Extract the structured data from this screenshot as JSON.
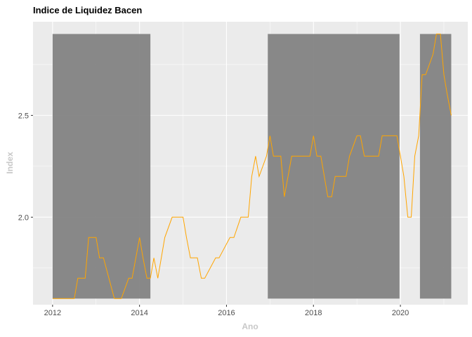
{
  "chart_data": {
    "type": "line",
    "title": "Indice de Liquidez Bacen",
    "xlabel": "Ano",
    "ylabel": "Index",
    "xlim": [
      2011.55,
      2021.55
    ],
    "ylim": [
      1.57,
      2.96
    ],
    "x_ticks": [
      2012,
      2014,
      2016,
      2018,
      2020
    ],
    "x_tick_labels": [
      "2012",
      "2014",
      "2016",
      "2018",
      "2020"
    ],
    "y_ticks": [
      2.0,
      2.5
    ],
    "y_tick_labels": [
      "2.0",
      "2.5"
    ],
    "grid": true,
    "colors": {
      "line": "#FFA500",
      "band": "#7f7f7f",
      "panel": "#ebebeb",
      "grid": "#ffffff"
    },
    "shaded_periods": [
      {
        "start": 2012.0,
        "end": 2014.25,
        "ymin": 1.6,
        "ymax": 2.9
      },
      {
        "start": 2016.95,
        "end": 2019.98,
        "ymin": 1.6,
        "ymax": 2.9
      },
      {
        "start": 2020.45,
        "end": 2021.17,
        "ymin": 1.6,
        "ymax": 2.9
      }
    ],
    "series": [
      {
        "x": [
          2012.0,
          2012.42,
          2012.5,
          2012.58,
          2012.75,
          2012.83,
          2013.0,
          2013.08,
          2013.17,
          2013.42,
          2013.5,
          2013.58,
          2013.75,
          2013.83,
          2014.0,
          2014.08,
          2014.17,
          2014.25,
          2014.33,
          2014.42,
          2014.58,
          2014.75,
          2015.0,
          2015.08,
          2015.17,
          2015.33,
          2015.42,
          2015.5,
          2015.75,
          2015.83,
          2016.08,
          2016.17,
          2016.33,
          2016.5,
          2016.58,
          2016.67,
          2016.75,
          2016.92,
          2017.0,
          2017.08,
          2017.25,
          2017.33,
          2017.5,
          2017.75,
          2017.83,
          2017.92,
          2018.0,
          2018.08,
          2018.17,
          2018.33,
          2018.42,
          2018.5,
          2018.75,
          2018.83,
          2019.0,
          2019.08,
          2019.17,
          2019.5,
          2019.58,
          2019.92,
          2020.0,
          2020.08,
          2020.17,
          2020.25,
          2020.33,
          2020.42,
          2020.5,
          2020.58,
          2020.75,
          2020.83,
          2020.92,
          2021.0,
          2021.08,
          2021.17
        ],
        "values": [
          1.6,
          1.6,
          1.6,
          1.7,
          1.7,
          1.9,
          1.9,
          1.8,
          1.8,
          1.6,
          1.6,
          1.6,
          1.7,
          1.7,
          1.9,
          1.8,
          1.7,
          1.7,
          1.8,
          1.7,
          1.9,
          2.0,
          2.0,
          1.9,
          1.8,
          1.8,
          1.7,
          1.7,
          1.8,
          1.8,
          1.9,
          1.9,
          2.0,
          2.0,
          2.2,
          2.3,
          2.2,
          2.3,
          2.4,
          2.3,
          2.3,
          2.1,
          2.3,
          2.3,
          2.3,
          2.3,
          2.4,
          2.3,
          2.3,
          2.1,
          2.1,
          2.2,
          2.2,
          2.3,
          2.4,
          2.4,
          2.3,
          2.3,
          2.4,
          2.4,
          2.3,
          2.2,
          2.0,
          2.0,
          2.3,
          2.4,
          2.7,
          2.7,
          2.8,
          2.9,
          2.9,
          2.7,
          2.6,
          2.5
        ]
      }
    ]
  }
}
